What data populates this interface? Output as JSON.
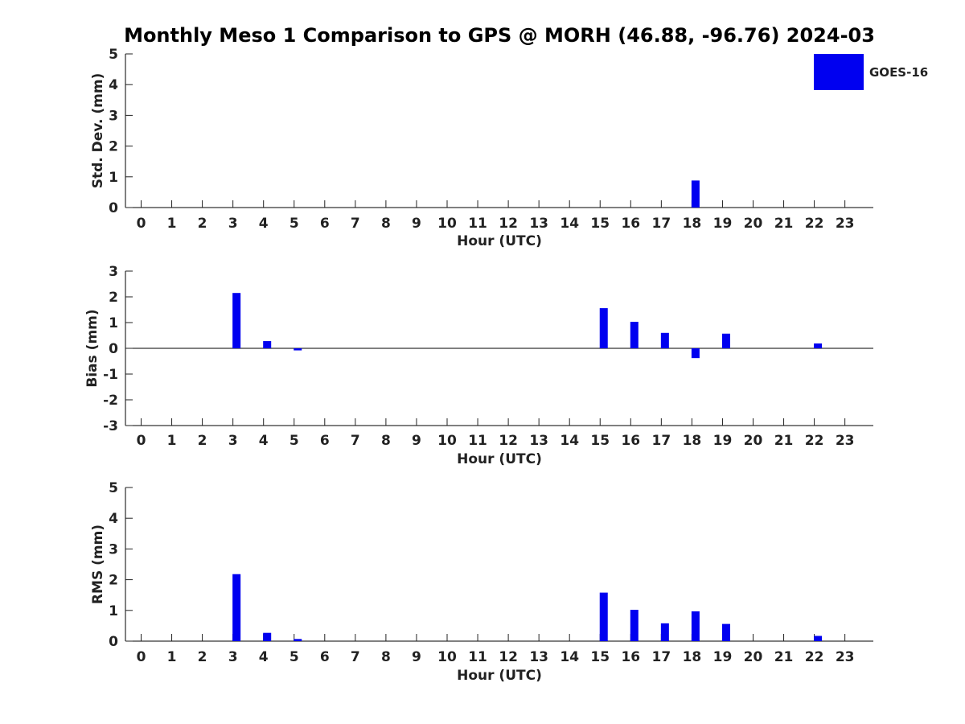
{
  "chart_data": [
    {
      "type": "bar",
      "title": "Monthly Meso 1 Comparison to GPS @ MORH (46.88, -96.76) 2024-03",
      "xlabel": "Hour (UTC)",
      "ylabel": "Std. Dev. (mm)",
      "ylim": [
        0,
        5
      ],
      "yticks": [
        "0",
        "1",
        "2",
        "3",
        "4",
        "5"
      ],
      "categories": [
        "0",
        "1",
        "2",
        "3",
        "4",
        "5",
        "6",
        "7",
        "8",
        "9",
        "10",
        "11",
        "12",
        "13",
        "14",
        "15",
        "16",
        "17",
        "18",
        "19",
        "20",
        "21",
        "22",
        "23"
      ],
      "series": [
        {
          "name": "GOES-16",
          "color": "#0000f0",
          "values": [
            null,
            null,
            null,
            null,
            null,
            null,
            null,
            null,
            null,
            null,
            null,
            null,
            null,
            null,
            null,
            null,
            null,
            null,
            0.88,
            null,
            null,
            null,
            null,
            null
          ]
        }
      ],
      "legend": {
        "position": "top-right",
        "entries": [
          "GOES-16"
        ]
      },
      "grid": false
    },
    {
      "type": "bar",
      "xlabel": "Hour (UTC)",
      "ylabel": "Bias (mm)",
      "ylim": [
        -3,
        3
      ],
      "yticks": [
        "-3",
        "-2",
        "-1",
        "0",
        "1",
        "2",
        "3"
      ],
      "zero_line": true,
      "categories": [
        "0",
        "1",
        "2",
        "3",
        "4",
        "5",
        "6",
        "7",
        "8",
        "9",
        "10",
        "11",
        "12",
        "13",
        "14",
        "15",
        "16",
        "17",
        "18",
        "19",
        "20",
        "21",
        "22",
        "23"
      ],
      "series": [
        {
          "color": "#0000f0",
          "values": [
            null,
            null,
            null,
            2.15,
            0.28,
            -0.08,
            null,
            null,
            null,
            null,
            null,
            null,
            null,
            null,
            null,
            1.56,
            1.03,
            0.6,
            -0.38,
            0.57,
            null,
            null,
            0.19,
            null
          ]
        }
      ],
      "grid": false
    },
    {
      "type": "bar",
      "xlabel": "Hour (UTC)",
      "ylabel": "RMS (mm)",
      "ylim": [
        0,
        5
      ],
      "yticks": [
        "0",
        "1",
        "2",
        "3",
        "4",
        "5"
      ],
      "categories": [
        "0",
        "1",
        "2",
        "3",
        "4",
        "5",
        "6",
        "7",
        "8",
        "9",
        "10",
        "11",
        "12",
        "13",
        "14",
        "15",
        "16",
        "17",
        "18",
        "19",
        "20",
        "21",
        "22",
        "23"
      ],
      "series": [
        {
          "color": "#0000f0",
          "values": [
            null,
            null,
            null,
            2.18,
            0.27,
            0.07,
            null,
            null,
            null,
            null,
            null,
            null,
            null,
            null,
            null,
            1.58,
            1.02,
            0.58,
            0.97,
            0.56,
            null,
            null,
            0.17,
            null
          ]
        }
      ],
      "grid": false
    }
  ]
}
